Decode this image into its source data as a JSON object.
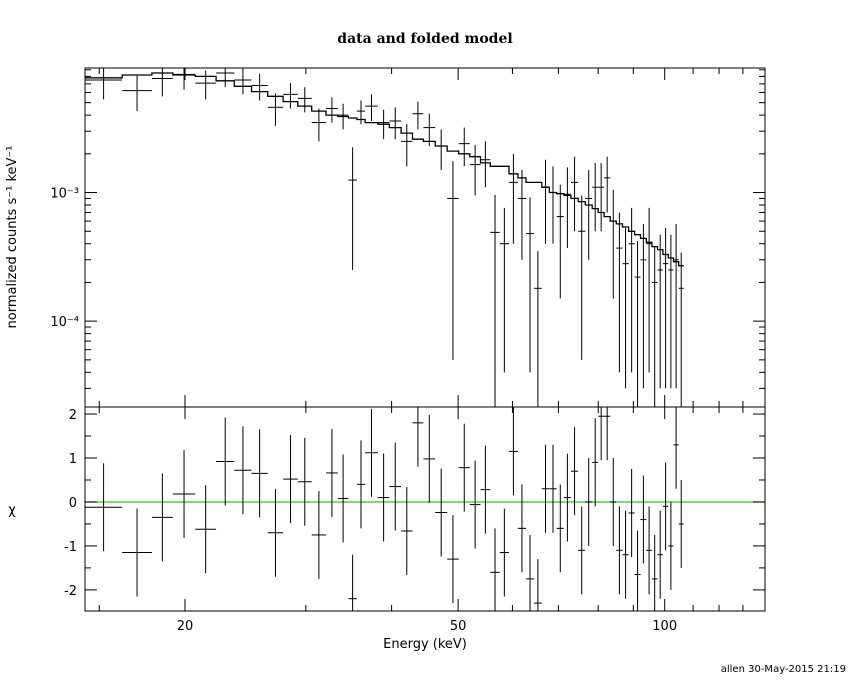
{
  "chart_data": {
    "title": "data and folded model",
    "footer": "allen 30-May-2015 21:19",
    "xlabel": "Energy (keV)",
    "x_scale": "log",
    "xlim": [
      14.3,
      140
    ],
    "x_ticks": [
      {
        "v": 20,
        "label": "20"
      },
      {
        "v": 50,
        "label": "50"
      },
      {
        "v": 100,
        "label": "100"
      }
    ],
    "top_panel": {
      "type": "step+errorbar",
      "ylabel": "normalized counts s⁻¹ keV⁻¹",
      "y_scale": "log",
      "ylim": [
        2.15e-05,
        0.0093
      ],
      "y_ticks": [
        {
          "v": 0.001,
          "label": "10⁻³"
        },
        {
          "v": 0.0001,
          "label": "10⁻⁴"
        }
      ]
    },
    "bottom_panel": {
      "type": "errorbar",
      "ylabel": "χ",
      "ylim": [
        -2.48,
        2.16
      ],
      "y_ticks": [
        {
          "v": 2,
          "label": "2"
        },
        {
          "v": 1,
          "label": "1"
        },
        {
          "v": 0,
          "label": "0"
        },
        {
          "v": -1,
          "label": "-1"
        },
        {
          "v": -2,
          "label": "-2"
        }
      ],
      "zero_line_color": "#22cc22"
    },
    "model_color": "#000000",
    "data_color": "#000000",
    "bins": [
      {
        "x0": 14.3,
        "x1": 16.2,
        "y": 0.0075,
        "yerr": 0.0022,
        "m": 0.0078,
        "chi": -0.12
      },
      {
        "x0": 16.2,
        "x1": 17.9,
        "y": 0.0062,
        "yerr": 0.0019,
        "m": 0.0082,
        "chi": -1.15
      },
      {
        "x0": 17.9,
        "x1": 19.2,
        "y": 0.0077,
        "yerr": 0.0021,
        "m": 0.0085,
        "chi": -0.35
      },
      {
        "x0": 19.2,
        "x1": 20.7,
        "y": 0.0083,
        "yerr": 0.002,
        "m": 0.0082,
        "chi": 0.18
      },
      {
        "x0": 20.7,
        "x1": 22.2,
        "y": 0.0071,
        "yerr": 0.0018,
        "m": 0.008,
        "chi": -0.62
      },
      {
        "x0": 22.2,
        "x1": 23.6,
        "y": 0.0085,
        "yerr": 0.0019,
        "m": 0.0074,
        "chi": 0.92
      },
      {
        "x0": 23.6,
        "x1": 25.0,
        "y": 0.0075,
        "yerr": 0.0017,
        "m": 0.0067,
        "chi": 0.72
      },
      {
        "x0": 25.0,
        "x1": 26.4,
        "y": 0.0068,
        "yerr": 0.0016,
        "m": 0.0061,
        "chi": 0.65
      },
      {
        "x0": 26.4,
        "x1": 27.8,
        "y": 0.0046,
        "yerr": 0.0013,
        "m": 0.0056,
        "chi": -0.7
      },
      {
        "x0": 27.8,
        "x1": 29.2,
        "y": 0.0058,
        "yerr": 0.0013,
        "m": 0.0051,
        "chi": 0.52
      },
      {
        "x0": 29.2,
        "x1": 30.6,
        "y": 0.0054,
        "yerr": 0.0012,
        "m": 0.0047,
        "chi": 0.46
      },
      {
        "x0": 30.6,
        "x1": 32.1,
        "y": 0.0035,
        "yerr": 0.001,
        "m": 0.0043,
        "chi": -0.75
      },
      {
        "x0": 32.1,
        "x1": 33.4,
        "y": 0.0045,
        "yerr": 0.001,
        "m": 0.004,
        "chi": 0.66
      },
      {
        "x0": 33.4,
        "x1": 34.6,
        "y": 0.004,
        "yerr": 0.0009,
        "m": 0.0039,
        "chi": 0.08
      },
      {
        "x0": 34.6,
        "x1": 35.6,
        "y": 0.00125,
        "yerr": 0.001,
        "m": 0.0038,
        "chi": -2.2
      },
      {
        "x0": 35.6,
        "x1": 36.6,
        "y": 0.0043,
        "yerr": 0.0009,
        "m": 0.0037,
        "chi": 0.4
      },
      {
        "x0": 36.6,
        "x1": 38.2,
        "y": 0.0047,
        "yerr": 0.0011,
        "m": 0.0035,
        "chi": 1.12
      },
      {
        "x0": 38.2,
        "x1": 39.7,
        "y": 0.0035,
        "yerr": 0.0009,
        "m": 0.0034,
        "chi": 0.1
      },
      {
        "x0": 39.7,
        "x1": 41.3,
        "y": 0.0036,
        "yerr": 0.001,
        "m": 0.0032,
        "chi": 0.35
      },
      {
        "x0": 41.3,
        "x1": 42.9,
        "y": 0.0025,
        "yerr": 0.0009,
        "m": 0.0029,
        "chi": -0.66
      },
      {
        "x0": 42.9,
        "x1": 44.5,
        "y": 0.0041,
        "yerr": 0.001,
        "m": 0.0026,
        "chi": 1.8
      },
      {
        "x0": 44.5,
        "x1": 46.3,
        "y": 0.0032,
        "yerr": 0.0009,
        "m": 0.0025,
        "chi": 0.98
      },
      {
        "x0": 46.3,
        "x1": 48.2,
        "y": 0.0023,
        "yerr": 0.0008,
        "m": 0.0023,
        "chi": -0.24
      },
      {
        "x0": 48.2,
        "x1": 50.1,
        "y": 0.0009,
        "yerr": 0.00085,
        "m": 0.0021,
        "chi": -1.3
      },
      {
        "x0": 50.1,
        "x1": 52.0,
        "y": 0.0024,
        "yerr": 0.0008,
        "m": 0.002,
        "chi": 0.78
      },
      {
        "x0": 52.0,
        "x1": 53.9,
        "y": 0.00165,
        "yerr": 0.0007,
        "m": 0.0019,
        "chi": -0.06
      },
      {
        "x0": 53.9,
        "x1": 55.7,
        "y": 0.0018,
        "yerr": 0.0007,
        "m": 0.0017,
        "chi": 0.28
      },
      {
        "x0": 55.7,
        "x1": 57.5,
        "y": 0.00049,
        "yerr": 0.00047,
        "m": 0.0016,
        "chi": -1.6
      },
      {
        "x0": 57.5,
        "x1": 59.3,
        "y": 0.0004,
        "yerr": 0.00036,
        "m": 0.0016,
        "chi": -1.15
      },
      {
        "x0": 59.3,
        "x1": 61.1,
        "y": 0.0012,
        "yerr": 0.0008,
        "m": 0.0014,
        "chi": 1.15
      },
      {
        "x0": 61.1,
        "x1": 62.8,
        "y": 0.0009,
        "yerr": 0.0006,
        "m": 0.0013,
        "chi": -0.6
      },
      {
        "x0": 62.8,
        "x1": 64.5,
        "y": 0.00048,
        "yerr": 0.00044,
        "m": 0.0012,
        "chi": -1.75
      },
      {
        "x0": 64.5,
        "x1": 66.2,
        "y": 0.00018,
        "yerr": 0.00017,
        "m": 0.0012,
        "chi": -2.3
      },
      {
        "x0": 66.2,
        "x1": 67.9,
        "y": 0.0011,
        "yerr": 0.0007,
        "m": 0.0011,
        "chi": 0.3
      },
      {
        "x0": 67.9,
        "x1": 69.6,
        "y": 0.001,
        "yerr": 0.0006,
        "m": 0.001,
        "chi": 0.3
      },
      {
        "x0": 69.6,
        "x1": 71.3,
        "y": 0.00065,
        "yerr": 0.0005,
        "m": 0.00098,
        "chi": -0.6
      },
      {
        "x0": 71.3,
        "x1": 73.0,
        "y": 0.00097,
        "yerr": 0.0006,
        "m": 0.00095,
        "chi": 0.1
      },
      {
        "x0": 73.0,
        "x1": 74.8,
        "y": 0.0012,
        "yerr": 0.0007,
        "m": 0.0009,
        "chi": 0.7
      },
      {
        "x0": 74.8,
        "x1": 76.6,
        "y": 0.0005,
        "yerr": 0.00045,
        "m": 0.00085,
        "chi": -1.1
      },
      {
        "x0": 76.6,
        "x1": 78.4,
        "y": 0.0009,
        "yerr": 0.0006,
        "m": 0.0008,
        "chi": 0.0
      },
      {
        "x0": 78.4,
        "x1": 80.0,
        "y": 0.0011,
        "yerr": 0.0006,
        "m": 0.00075,
        "chi": 0.9
      },
      {
        "x0": 80.0,
        "x1": 81.6,
        "y": 0.0011,
        "yerr": 0.0006,
        "m": 0.0007,
        "chi": 1.95
      },
      {
        "x0": 81.6,
        "x1": 83.3,
        "y": 0.0013,
        "yerr": 0.0006,
        "m": 0.00065,
        "chi": 1.95
      },
      {
        "x0": 83.3,
        "x1": 85.0,
        "y": 0.0006,
        "yerr": 0.00045,
        "m": 0.0006,
        "chi": 0.0
      },
      {
        "x0": 85.0,
        "x1": 86.8,
        "y": 0.00037,
        "yerr": 0.00033,
        "m": 0.00057,
        "chi": -1.1
      },
      {
        "x0": 86.8,
        "x1": 88.6,
        "y": 0.00028,
        "yerr": 0.00025,
        "m": 0.00054,
        "chi": -1.2
      },
      {
        "x0": 88.6,
        "x1": 90.4,
        "y": 0.0004,
        "yerr": 0.00036,
        "m": 0.0005,
        "chi": -0.25
      },
      {
        "x0": 90.4,
        "x1": 92.2,
        "y": 0.00022,
        "yerr": 0.0002,
        "m": 0.00047,
        "chi": -1.65
      },
      {
        "x0": 92.2,
        "x1": 94.0,
        "y": 0.0003,
        "yerr": 0.00027,
        "m": 0.00044,
        "chi": -0.4
      },
      {
        "x0": 94.0,
        "x1": 95.8,
        "y": 0.0004,
        "yerr": 0.00036,
        "m": 0.00041,
        "chi": -1.1
      },
      {
        "x0": 95.8,
        "x1": 97.6,
        "y": 0.0002,
        "yerr": 0.00018,
        "m": 0.00038,
        "chi": -1.75
      },
      {
        "x0": 97.6,
        "x1": 99.4,
        "y": 0.00025,
        "yerr": 0.00022,
        "m": 0.00036,
        "chi": -1.2
      },
      {
        "x0": 99.4,
        "x1": 101.2,
        "y": 0.00028,
        "yerr": 0.00025,
        "m": 0.00033,
        "chi": -0.1
      },
      {
        "x0": 101.2,
        "x1": 103.0,
        "y": 0.00025,
        "yerr": 0.00022,
        "m": 0.00031,
        "chi": -1.0
      },
      {
        "x0": 103.0,
        "x1": 104.8,
        "y": 0.0003,
        "yerr": 0.00027,
        "m": 0.00029,
        "chi": 1.3
      },
      {
        "x0": 104.8,
        "x1": 106.6,
        "y": 0.00018,
        "yerr": 0.00016,
        "m": 0.00027,
        "chi": -0.5
      }
    ]
  }
}
